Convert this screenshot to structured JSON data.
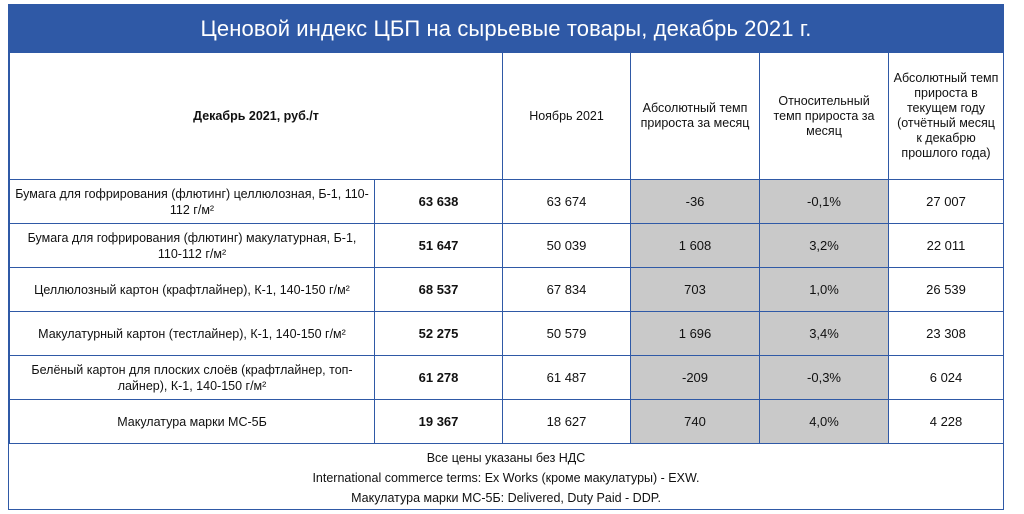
{
  "title": "Ценовой индекс ЦБП на сырьевые товары, декабрь 2021 г.",
  "header": {
    "col_name": "Декабрь 2021, руб./т",
    "col_prev": "Ноябрь 2021",
    "col_abs": "Абсолютный темп прироста за месяц",
    "col_rel": "Относительный темп прироста за месяц",
    "col_ytd": "Абсолютный темп прироста в текущем году (отчётный месяц к декабрю прошлого года)"
  },
  "rows": [
    {
      "name": "Бумага для гофрирования (флютинг) целлюлозная, Б-1, 110-112 г/м²",
      "dec": "63 638",
      "nov": "63 674",
      "abs": "-36",
      "rel": "-0,1%",
      "ytd": "27 007"
    },
    {
      "name": "Бумага для гофрирования (флютинг) макулатурная, Б-1, 110-112 г/м²",
      "dec": "51 647",
      "nov": "50 039",
      "abs": "1 608",
      "rel": "3,2%",
      "ytd": "22 011"
    },
    {
      "name": "Целлюлозный картон (крафтлайнер), К-1, 140-150 г/м²",
      "dec": "68 537",
      "nov": "67 834",
      "abs": "703",
      "rel": "1,0%",
      "ytd": "26 539"
    },
    {
      "name": "Макулатурный картон (тестлайнер), К-1, 140-150 г/м²",
      "dec": "52 275",
      "nov": "50 579",
      "abs": "1 696",
      "rel": "3,4%",
      "ytd": "23 308"
    },
    {
      "name": "Белёный картон для плоских слоёв (крафтлайнер, топ-лайнер), К-1, 140-150 г/м²",
      "dec": "61 278",
      "nov": "61 487",
      "abs": "-209",
      "rel": "-0,3%",
      "ytd": "6 024"
    },
    {
      "name": "Макулатура марки МС-5Б",
      "dec": "19 367",
      "nov": "18 627",
      "abs": "740",
      "rel": "4,0%",
      "ytd": "4 228"
    }
  ],
  "notes": [
    "Все цены указаны без НДС",
    "International commerce terms: Ex Works (кроме макулатуры) - EXW.",
    "Макулатура марки МС-5Б: Delivered, Duty Paid - DDP."
  ],
  "colors": {
    "header_bg": "#2f59a6",
    "shade": "#c9c9c9"
  }
}
